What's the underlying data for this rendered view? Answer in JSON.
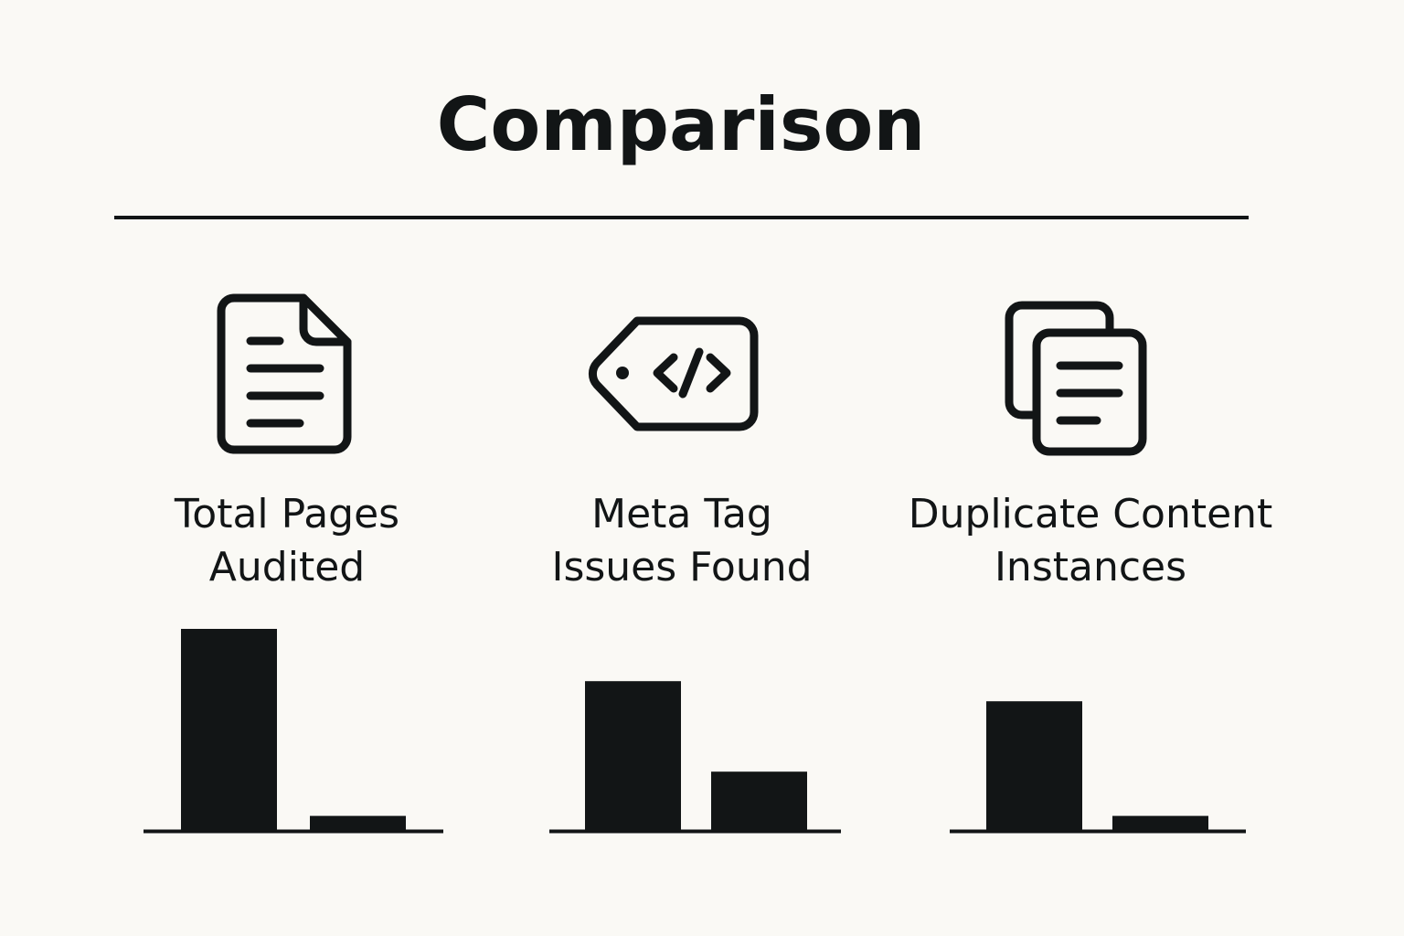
{
  "title": "Comparison",
  "colors": {
    "ink": "#121516",
    "background": "#faf9f5"
  },
  "panels": [
    {
      "icon": "document-icon",
      "label_line1": "Total Pages",
      "label_line2": "Audited"
    },
    {
      "icon": "code-tag-icon",
      "label_line1": "Meta Tag",
      "label_line2": "Issues Found"
    },
    {
      "icon": "duplicate-documents-icon",
      "label_line1": "Duplicate Content",
      "label_line2": "Instances"
    }
  ],
  "chart_data": [
    {
      "type": "bar",
      "title": "Total Pages Audited",
      "values": [
        100,
        7
      ],
      "ylim": [
        0,
        100
      ]
    },
    {
      "type": "bar",
      "title": "Meta Tag Issues Found",
      "values": [
        74,
        29
      ],
      "ylim": [
        0,
        100
      ]
    },
    {
      "type": "bar",
      "title": "Duplicate Content Instances",
      "values": [
        64,
        7
      ],
      "ylim": [
        0,
        100
      ]
    }
  ]
}
